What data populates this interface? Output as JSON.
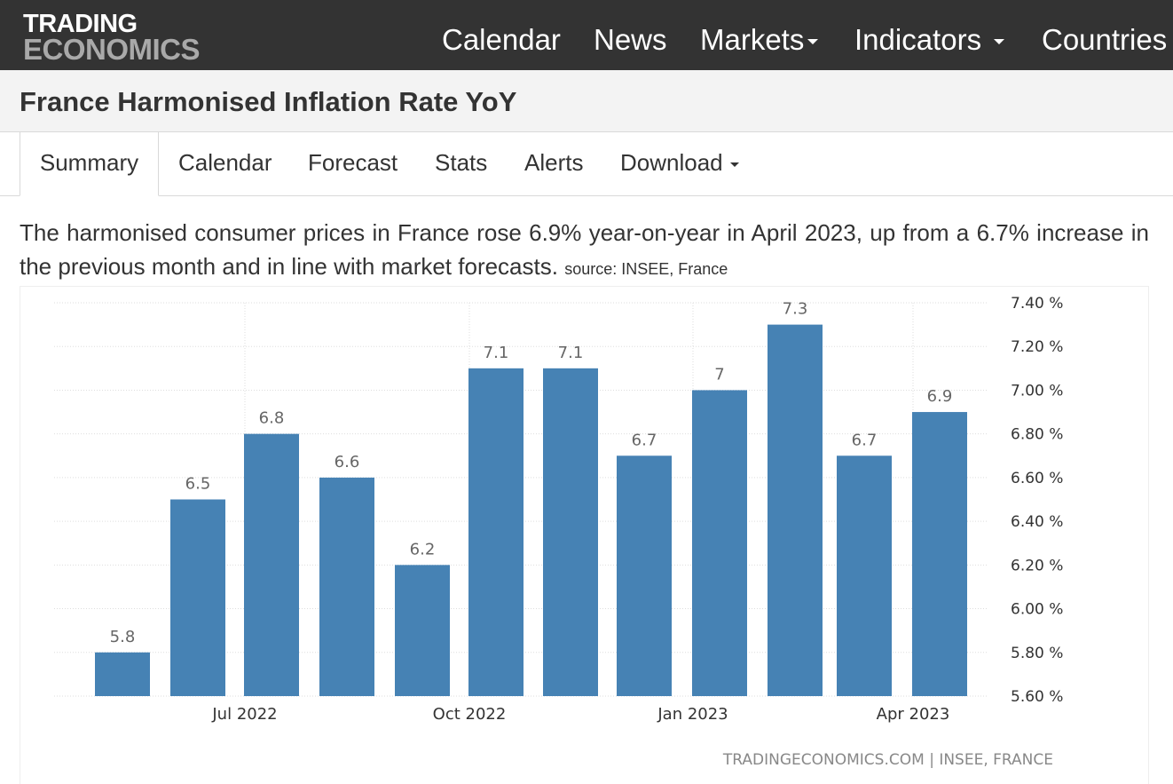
{
  "brand": {
    "line1": "TRADING",
    "line2": "ECONOMICS"
  },
  "nav": [
    {
      "label": "Calendar",
      "dropdown": false
    },
    {
      "label": "News",
      "dropdown": false
    },
    {
      "label": "Markets",
      "dropdown": true
    },
    {
      "label": "Indicators",
      "dropdown": true
    },
    {
      "label": "Countries",
      "dropdown": false
    }
  ],
  "page_title": "France Harmonised Inflation Rate YoY",
  "tabs": [
    {
      "label": "Summary",
      "active": true
    },
    {
      "label": "Calendar"
    },
    {
      "label": "Forecast"
    },
    {
      "label": "Stats"
    },
    {
      "label": "Alerts"
    },
    {
      "label": "Download",
      "dropdown": true
    }
  ],
  "summary": {
    "text": "The harmonised consumer prices in France rose 6.9% year-on-year in April 2023, up from a 6.7% increase in the previous month and in line with market forecasts.",
    "source": "source: INSEE, France"
  },
  "colors": {
    "bar": "#4682b4",
    "nav_bg": "#333333",
    "grid": "#dddddd"
  },
  "chart_data": {
    "type": "bar",
    "categories": [
      "May 2022",
      "Jun 2022",
      "Jul 2022",
      "Aug 2022",
      "Sep 2022",
      "Oct 2022",
      "Nov 2022",
      "Dec 2022",
      "Jan 2023",
      "Feb 2023",
      "Mar 2023",
      "Apr 2023"
    ],
    "values": [
      5.8,
      6.5,
      6.8,
      6.6,
      6.2,
      7.1,
      7.1,
      6.7,
      7,
      7.3,
      6.7,
      6.9
    ],
    "data_labels": [
      "5.8",
      "6.5",
      "6.8",
      "6.6",
      "6.2",
      "7.1",
      "7.1",
      "6.7",
      "7",
      "7.3",
      "6.7",
      "6.9"
    ],
    "x_tick_labels": [
      {
        "label": "Jul 2022",
        "category": "Jul 2022"
      },
      {
        "label": "Oct 2022",
        "category": "Oct 2022"
      },
      {
        "label": "Jan 2023",
        "category": "Jan 2023"
      },
      {
        "label": "Apr 2023",
        "category": "Apr 2023"
      }
    ],
    "y_ticks": [
      5.6,
      5.8,
      6.0,
      6.2,
      6.4,
      6.6,
      6.8,
      7.0,
      7.2,
      7.4
    ],
    "y_tick_labels": [
      "5.60 %",
      "5.80 %",
      "6.00 %",
      "6.20 %",
      "6.40 %",
      "6.60 %",
      "6.80 %",
      "7.00 %",
      "7.20 %",
      "7.40 %"
    ],
    "ylim": [
      5.6,
      7.4
    ],
    "y_axis_side": "right",
    "grid": true,
    "credit": "TRADINGECONOMICS.COM | INSEE, FRANCE"
  }
}
